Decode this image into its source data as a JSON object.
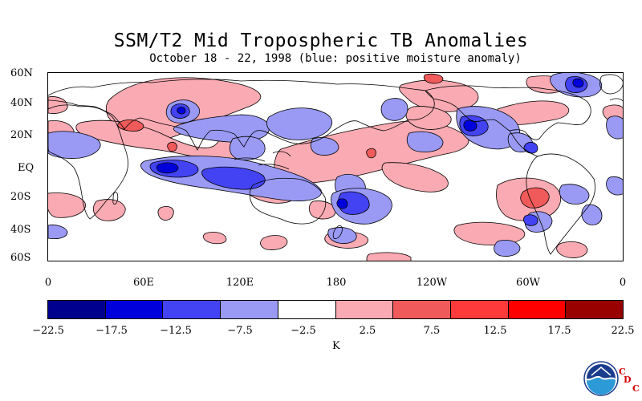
{
  "title": "SSM/T2 Mid Tropospheric TB Anomalies",
  "subtitle": "October 18 - 22, 1998 (blue: positive moisture anomaly)",
  "lat_labels": [
    "60N",
    "40N",
    "20N",
    "EQ",
    "20S",
    "40S",
    "60S"
  ],
  "lon_labels": [
    "0",
    "60E",
    "120E",
    "180",
    "120W",
    "60W",
    "0"
  ],
  "colorbar": {
    "ticks": [
      "-22.5",
      "-17.5",
      "-12.5",
      "-7.5",
      "-2.5",
      "2.5",
      "7.5",
      "12.5",
      "17.5",
      "22.5"
    ],
    "colors": [
      "#00008f",
      "#0000dd",
      "#4343f3",
      "#9a9af5",
      "#ffffff",
      "#f9aab2",
      "#f05a5a",
      "#ff3a3a",
      "#ff0000",
      "#990000"
    ],
    "unit": "K"
  },
  "logo": {
    "label": "NOAA",
    "cdc_letters": [
      "C",
      "D",
      "C"
    ]
  }
}
